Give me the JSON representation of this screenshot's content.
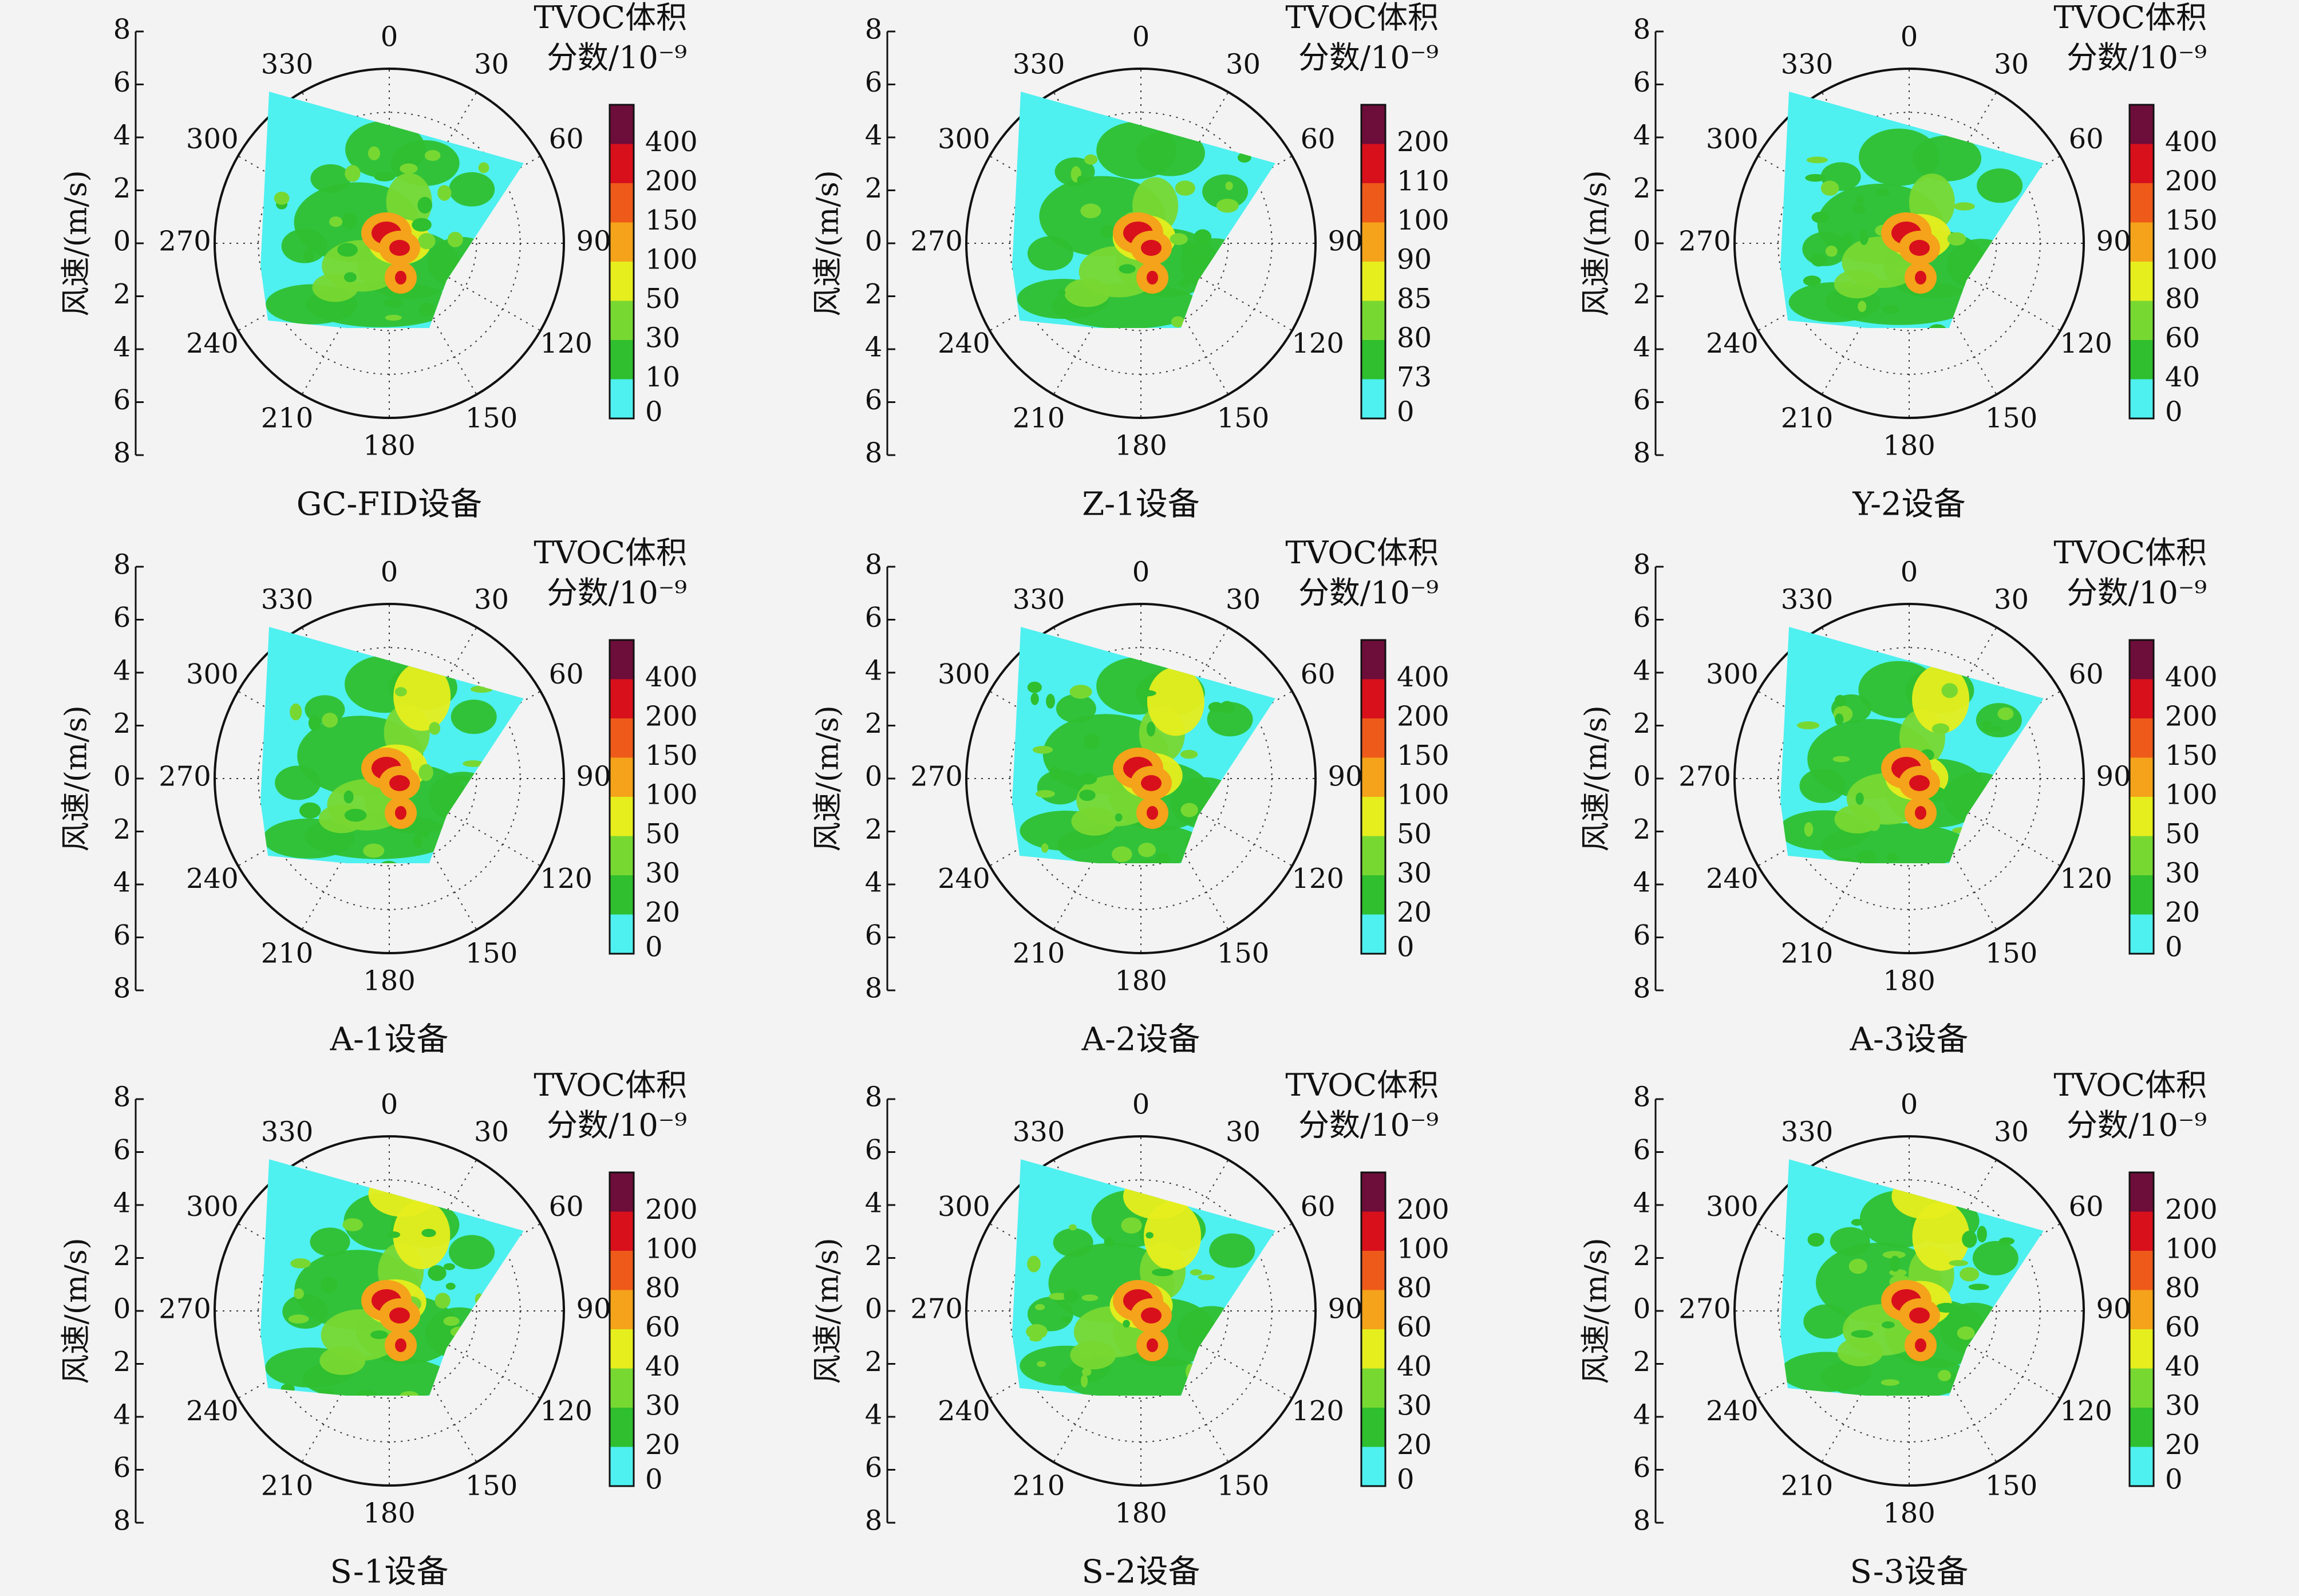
{
  "colors": {
    "levels": [
      "#4ff0f0",
      "#2fbf2f",
      "#78d832",
      "#e6ee1e",
      "#f4a31a",
      "#ee5a1a",
      "#d8101c",
      "#6d0d3a"
    ],
    "polygon_base": "#5ff0ec",
    "background": "#f3f3f3"
  },
  "chart_data": [
    {
      "type": "heatmap",
      "title": "GC-FID设备",
      "ylabel": "风速/(m/s)",
      "r_ticks": [
        "8",
        "6",
        "4",
        "2",
        "0",
        "2",
        "4",
        "6",
        "8"
      ],
      "angle_ticks": [
        "0",
        "30",
        "60",
        "90",
        "120",
        "150",
        "180",
        "210",
        "240",
        "270",
        "300",
        "330"
      ],
      "colorbar_title": [
        "TVOC体积",
        "分数/10⁻⁹"
      ],
      "colorbar_ticks": [
        "0",
        "10",
        "30",
        "50",
        "100",
        "150",
        "200",
        "400"
      ],
      "rlim": [
        0,
        8
      ],
      "hotspot_level": 6
    },
    {
      "type": "heatmap",
      "title": "Z-1设备",
      "ylabel": "风速/(m/s)",
      "r_ticks": [
        "8",
        "6",
        "4",
        "2",
        "0",
        "2",
        "4",
        "6",
        "8"
      ],
      "angle_ticks": [
        "0",
        "30",
        "60",
        "90",
        "120",
        "150",
        "180",
        "210",
        "240",
        "270",
        "300",
        "330"
      ],
      "colorbar_title": [
        "TVOC体积",
        "分数/10⁻⁹"
      ],
      "colorbar_ticks": [
        "0",
        "73",
        "80",
        "85",
        "90",
        "100",
        "110",
        "200"
      ],
      "rlim": [
        0,
        8
      ],
      "hotspot_level": 6
    },
    {
      "type": "heatmap",
      "title": "Y-2设备",
      "ylabel": "风速/(m/s)",
      "r_ticks": [
        "8",
        "6",
        "4",
        "2",
        "0",
        "2",
        "4",
        "6",
        "8"
      ],
      "angle_ticks": [
        "0",
        "30",
        "60",
        "90",
        "120",
        "150",
        "180",
        "210",
        "240",
        "270",
        "300",
        "330"
      ],
      "colorbar_title": [
        "TVOC体积",
        "分数/10⁻⁹"
      ],
      "colorbar_ticks": [
        "0",
        "40",
        "60",
        "80",
        "100",
        "150",
        "200",
        "400"
      ],
      "rlim": [
        0,
        8
      ],
      "hotspot_level": 6
    },
    {
      "type": "heatmap",
      "title": "A-1设备",
      "ylabel": "风速/(m/s)",
      "r_ticks": [
        "8",
        "6",
        "4",
        "2",
        "0",
        "2",
        "4",
        "6",
        "8"
      ],
      "angle_ticks": [
        "0",
        "30",
        "60",
        "90",
        "120",
        "150",
        "180",
        "210",
        "240",
        "270",
        "300",
        "330"
      ],
      "colorbar_title": [
        "TVOC体积",
        "分数/10⁻⁹"
      ],
      "colorbar_ticks": [
        "0",
        "20",
        "30",
        "50",
        "100",
        "150",
        "200",
        "400"
      ],
      "rlim": [
        0,
        8
      ],
      "hotspot_level": 6
    },
    {
      "type": "heatmap",
      "title": "A-2设备",
      "ylabel": "风速/(m/s)",
      "r_ticks": [
        "8",
        "6",
        "4",
        "2",
        "0",
        "2",
        "4",
        "6",
        "8"
      ],
      "angle_ticks": [
        "0",
        "30",
        "60",
        "90",
        "120",
        "150",
        "180",
        "210",
        "240",
        "270",
        "300",
        "330"
      ],
      "colorbar_title": [
        "TVOC体积",
        "分数/10⁻⁹"
      ],
      "colorbar_ticks": [
        "0",
        "20",
        "30",
        "50",
        "100",
        "150",
        "200",
        "400"
      ],
      "rlim": [
        0,
        8
      ],
      "hotspot_level": 6
    },
    {
      "type": "heatmap",
      "title": "A-3设备",
      "ylabel": "风速/(m/s)",
      "r_ticks": [
        "8",
        "6",
        "4",
        "2",
        "0",
        "2",
        "4",
        "6",
        "8"
      ],
      "angle_ticks": [
        "0",
        "30",
        "60",
        "90",
        "120",
        "150",
        "180",
        "210",
        "240",
        "270",
        "300",
        "330"
      ],
      "colorbar_title": [
        "TVOC体积",
        "分数/10⁻⁹"
      ],
      "colorbar_ticks": [
        "0",
        "20",
        "30",
        "50",
        "100",
        "150",
        "200",
        "400"
      ],
      "rlim": [
        0,
        8
      ],
      "hotspot_level": 6
    },
    {
      "type": "heatmap",
      "title": "S-1设备",
      "ylabel": "风速/(m/s)",
      "r_ticks": [
        "8",
        "6",
        "4",
        "2",
        "0",
        "2",
        "4",
        "6",
        "8"
      ],
      "angle_ticks": [
        "0",
        "30",
        "60",
        "90",
        "120",
        "150",
        "180",
        "210",
        "240",
        "270",
        "300",
        "330"
      ],
      "colorbar_title": [
        "TVOC体积",
        "分数/10⁻⁹"
      ],
      "colorbar_ticks": [
        "0",
        "20",
        "30",
        "40",
        "60",
        "80",
        "100",
        "200"
      ],
      "rlim": [
        0,
        8
      ],
      "hotspot_level": 6
    },
    {
      "type": "heatmap",
      "title": "S-2设备",
      "ylabel": "风速/(m/s)",
      "r_ticks": [
        "8",
        "6",
        "4",
        "2",
        "0",
        "2",
        "4",
        "6",
        "8"
      ],
      "angle_ticks": [
        "0",
        "30",
        "60",
        "90",
        "120",
        "150",
        "180",
        "210",
        "240",
        "270",
        "300",
        "330"
      ],
      "colorbar_title": [
        "TVOC体积",
        "分数/10⁻⁹"
      ],
      "colorbar_ticks": [
        "0",
        "20",
        "30",
        "40",
        "60",
        "80",
        "100",
        "200"
      ],
      "rlim": [
        0,
        8
      ],
      "hotspot_level": 6
    },
    {
      "type": "heatmap",
      "title": "S-3设备",
      "ylabel": "风速/(m/s)",
      "r_ticks": [
        "8",
        "6",
        "4",
        "2",
        "0",
        "2",
        "4",
        "6",
        "8"
      ],
      "angle_ticks": [
        "0",
        "30",
        "60",
        "90",
        "120",
        "150",
        "180",
        "210",
        "240",
        "270",
        "300",
        "330"
      ],
      "colorbar_title": [
        "TVOC体积",
        "分数/10⁻⁹"
      ],
      "colorbar_ticks": [
        "0",
        "20",
        "30",
        "40",
        "60",
        "80",
        "100",
        "200"
      ],
      "rlim": [
        0,
        8
      ],
      "hotspot_level": 6
    }
  ]
}
